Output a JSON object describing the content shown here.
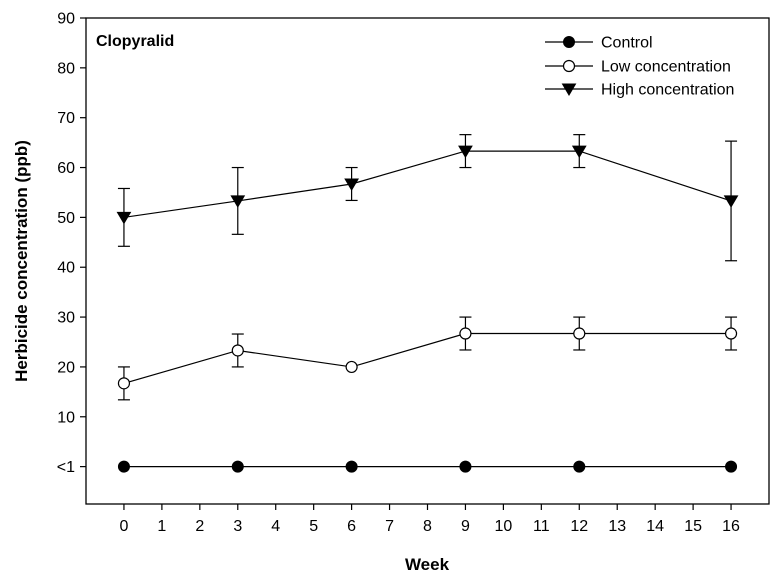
{
  "chart_data": {
    "type": "line",
    "panel_label": "Clopyralid",
    "xlabel": "Week",
    "ylabel": "Herbicide concentration (ppb)",
    "x_ticks": [
      0,
      1,
      2,
      3,
      4,
      5,
      6,
      7,
      8,
      9,
      10,
      11,
      12,
      13,
      14,
      15,
      16
    ],
    "y_ticks": [
      {
        "value": 0,
        "label": "<1"
      },
      {
        "value": 10,
        "label": "10"
      },
      {
        "value": 20,
        "label": "20"
      },
      {
        "value": 30,
        "label": "30"
      },
      {
        "value": 40,
        "label": "40"
      },
      {
        "value": 50,
        "label": "50"
      },
      {
        "value": 60,
        "label": "60"
      },
      {
        "value": 70,
        "label": "70"
      },
      {
        "value": 80,
        "label": "80"
      },
      {
        "value": 90,
        "label": "90"
      }
    ],
    "xlim": [
      -1,
      17
    ],
    "ylim": [
      -7.5,
      90
    ],
    "grid": false,
    "legend_position": "top-right",
    "x": [
      0,
      3,
      6,
      9,
      12,
      16
    ],
    "series": [
      {
        "name": "Control",
        "marker": "filled-circle",
        "values": [
          0,
          0,
          0,
          0,
          0,
          0
        ],
        "errors": [
          0,
          0,
          0,
          0,
          0,
          0
        ]
      },
      {
        "name": "Low concentration",
        "marker": "open-circle",
        "values": [
          16.7,
          23.3,
          20.0,
          26.7,
          26.7,
          26.7
        ],
        "errors": [
          3.3,
          3.3,
          0,
          3.3,
          3.3,
          3.3
        ]
      },
      {
        "name": "High concentration",
        "marker": "filled-triangle-down",
        "values": [
          50.0,
          53.3,
          56.7,
          63.3,
          63.3,
          53.3
        ],
        "errors": [
          5.8,
          6.7,
          3.3,
          3.3,
          3.3,
          12.0
        ]
      }
    ]
  }
}
